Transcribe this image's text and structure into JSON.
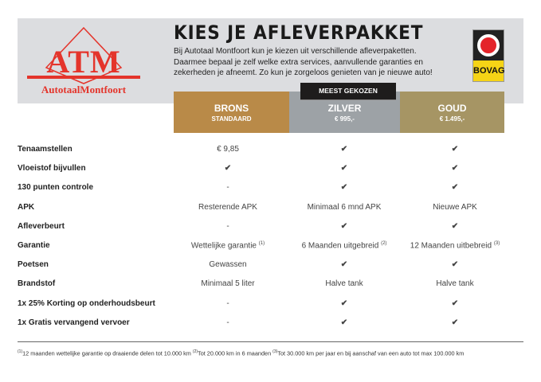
{
  "header": {
    "title": "KIES JE AFLEVERPAKKET",
    "intro": "Bij Autotaal Montfoort kun je kiezen uit verschillende afleverpaketten. Daarmee bepaal je zelf welke extra services, aanvullende garanties en zekerheden je afneemt. Zo kun je zorgeloos genieten van je nieuwe auto!",
    "logo_text": "ATM",
    "logo_subtitle": "AutotaalMontfoort",
    "bovag": "BOVAG",
    "badge": "MEEST GEKOZEN"
  },
  "packages": [
    {
      "name": "BRONS",
      "sub": "STANDAARD",
      "color": "#b98a48"
    },
    {
      "name": "ZILVER",
      "sub": "€ 995,-",
      "color": "#9da2a6"
    },
    {
      "name": "GOUD",
      "sub": "€ 1.495,-",
      "color": "#a69564"
    }
  ],
  "check": "✔",
  "rows": [
    {
      "label": "Tenaamstellen",
      "values": [
        "€ 9,85",
        "✔",
        "✔"
      ]
    },
    {
      "label": "Vloeistof bijvullen",
      "values": [
        "✔",
        "✔",
        "✔"
      ]
    },
    {
      "label": "130 punten controle",
      "values": [
        "-",
        "✔",
        "✔"
      ]
    },
    {
      "label": "APK",
      "values": [
        "Resterende APK",
        "Minimaal 6 mnd APK",
        "Nieuwe APK"
      ]
    },
    {
      "label": "Afleverbeurt",
      "values": [
        "-",
        "✔",
        "✔"
      ]
    },
    {
      "label": "Garantie",
      "values": [
        "Wettelijke garantie",
        "6 Maanden uitgebreid",
        "12 Maanden uitbebreid"
      ],
      "notes": [
        "(1)",
        "(2)",
        "(3)"
      ]
    },
    {
      "label": "Poetsen",
      "values": [
        "Gewassen",
        "✔",
        "✔"
      ]
    },
    {
      "label": "Brandstof",
      "values": [
        "Minimaal 5 liter",
        "Halve tank",
        "Halve tank"
      ]
    },
    {
      "label": "1x 25% Korting op onderhoudsbeurt",
      "values": [
        "-",
        "✔",
        "✔"
      ]
    },
    {
      "label": "1x Gratis vervangend vervoer",
      "values": [
        "-",
        "✔",
        "✔"
      ]
    }
  ],
  "footnotes": [
    {
      "mark": "(1)",
      "text": "12 maanden wettelijke garantie op draaiende delen tot 10.000 km"
    },
    {
      "mark": "(2)",
      "text": "Tot 20.000 km in 6 maanden"
    },
    {
      "mark": "(3)",
      "text": "Tot 30.000 km per jaar en bij aanschaf van een auto tot max 100.000 km"
    }
  ]
}
